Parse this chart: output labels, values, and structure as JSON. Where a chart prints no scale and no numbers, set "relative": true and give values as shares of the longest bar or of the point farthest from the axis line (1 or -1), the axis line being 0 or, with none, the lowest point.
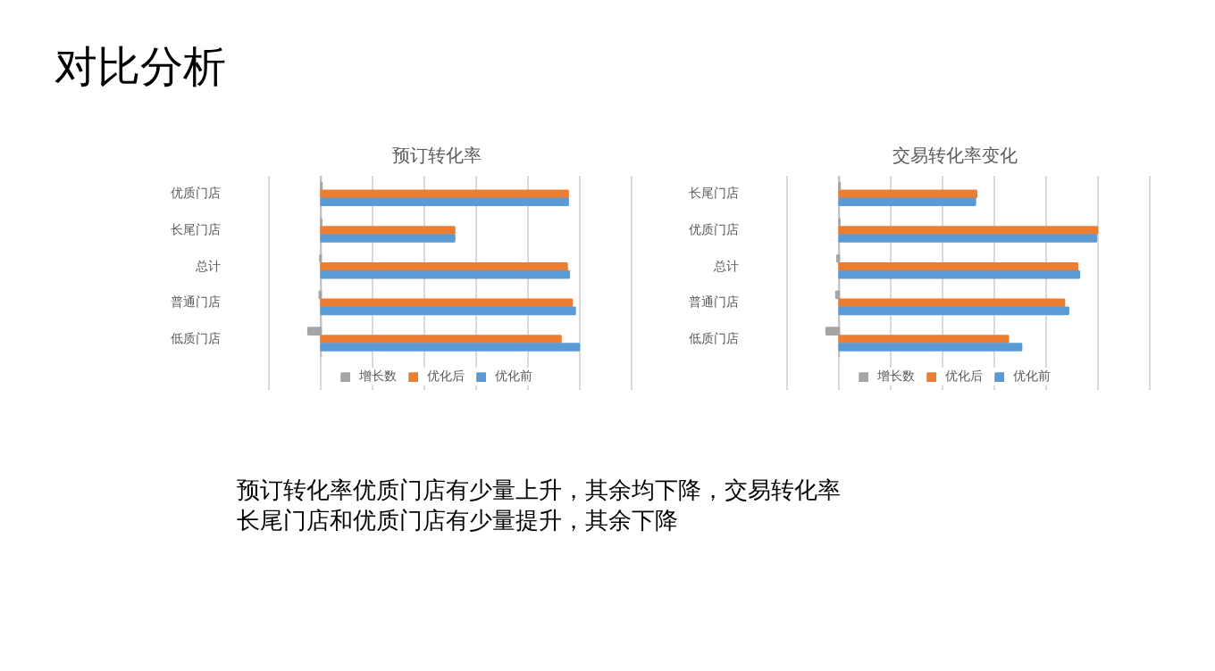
{
  "chart_data": [
    {
      "type": "other",
      "title": "对比分析",
      "annotations": [
        "预订转化率优质门店有少量上升，其余均下降，交易转化率",
        "长尾门店和优质门店有少量提升，其余下降"
      ]
    },
    {
      "type": "bar",
      "orientation": "horizontal",
      "relative": true,
      "title": "预订转化率",
      "categories": [
        "优质门店",
        "长尾门店",
        "总计",
        "普通门店",
        "低质门店"
      ],
      "grid": "x",
      "legend": "bottom",
      "series": [
        {
          "name": "增长数",
          "color": "#a5a5a5",
          "values": [
            0.003,
            0.002,
            -0.004,
            -0.006,
            -0.05
          ]
        },
        {
          "name": "优化后",
          "color": "#ed7d31",
          "values": [
            0.957,
            0.517,
            0.953,
            0.972,
            0.929
          ]
        },
        {
          "name": "优化前",
          "color": "#5b9bd5",
          "values": [
            0.957,
            0.517,
            0.961,
            0.984,
            1
          ]
        }
      ]
    },
    {
      "type": "bar",
      "orientation": "horizontal",
      "relative": true,
      "title": "交易转化率变化",
      "categories": [
        "长尾门店",
        "优质门店",
        "总计",
        "普通门店",
        "低质门店"
      ],
      "grid": "x",
      "legend": "bottom",
      "series": [
        {
          "name": "增长数",
          "color": "#a5a5a5",
          "values": [
            0.003,
            0.002,
            -0.008,
            -0.012,
            -0.05
          ]
        },
        {
          "name": "优化后",
          "color": "#ed7d31",
          "values": [
            0.532,
            1,
            0.923,
            0.872,
            0.655
          ]
        },
        {
          "name": "优化前",
          "color": "#5b9bd5",
          "values": [
            0.527,
            0.996,
            0.93,
            0.888,
            0.706
          ]
        }
      ]
    }
  ]
}
